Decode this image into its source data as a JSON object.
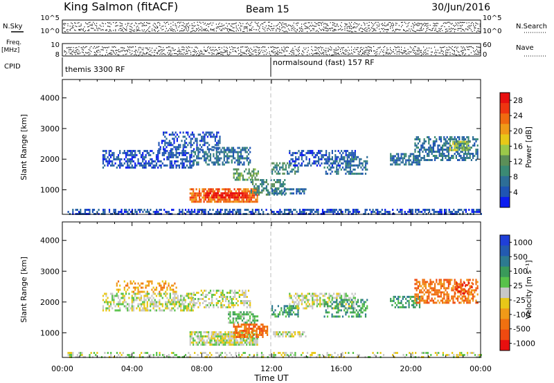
{
  "header": {
    "station": "King Salmon (fitACF)",
    "beam": "Beam 15",
    "date": "30/Jun/2016"
  },
  "param_panels": {
    "nsky_label": "N.Sky",
    "nsky_ticks": [
      "10^5",
      "10^0"
    ],
    "nsearch_label": "N.Search",
    "nsearch_ticks": [
      "10^5",
      "10^0"
    ],
    "freq_label": "Freq.",
    "freq_unit": "[MHz]",
    "freq_ticks": [
      "10",
      "8"
    ],
    "nave_label": "Nave",
    "nave_ticks": [
      "60",
      "0"
    ],
    "cpid_label": "CPID",
    "cpid_segments": [
      "themis 3300 RF",
      "normalsound (fast) 157 RF"
    ]
  },
  "chart_data": [
    {
      "type": "heatmap",
      "parameter": "power",
      "xlabel": "Time UT",
      "ylabel": "Slant Range [km]",
      "xlim_hours": [
        0,
        24
      ],
      "x_ticks": [
        "00:00",
        "04:00",
        "08:00",
        "12:00",
        "16:00",
        "20:00",
        "00:00"
      ],
      "ylim": [
        200,
        4600
      ],
      "y_ticks": [
        1000,
        2000,
        3000,
        4000
      ],
      "colorbar": {
        "label": "Power [dB]",
        "ticks": [
          4,
          8,
          12,
          16,
          20,
          24,
          28
        ],
        "range": [
          0,
          30
        ],
        "colors": [
          "#0b1cf0",
          "#1f54b4",
          "#2d6e97",
          "#3b8a74",
          "#5c8f58",
          "#9bc84a",
          "#e8c818",
          "#f09a18",
          "#f06a10",
          "#ef3510",
          "#e80f0f"
        ]
      },
      "clusters": [
        {
          "t0": 0.3,
          "t1": 24.0,
          "r0": 240,
          "r1": 380,
          "level": 1,
          "density": 0.55
        },
        {
          "t0": 2.3,
          "t1": 7.5,
          "r0": 1700,
          "r1": 2300,
          "level": 1,
          "density": 0.55
        },
        {
          "t0": 5.5,
          "t1": 9.0,
          "r0": 2300,
          "r1": 2900,
          "level": 1,
          "density": 0.45
        },
        {
          "t0": 7.5,
          "t1": 10.8,
          "r0": 1800,
          "r1": 2400,
          "level": 2,
          "density": 0.55
        },
        {
          "t0": 9.8,
          "t1": 11.2,
          "r0": 1300,
          "r1": 1700,
          "level": 4,
          "density": 0.55
        },
        {
          "t0": 7.3,
          "t1": 11.2,
          "r0": 630,
          "r1": 1050,
          "level": 8,
          "density": 0.8
        },
        {
          "t0": 8.2,
          "t1": 10.6,
          "r0": 720,
          "r1": 920,
          "level": 10,
          "density": 0.8
        },
        {
          "t0": 10.8,
          "t1": 12.8,
          "r0": 850,
          "r1": 1350,
          "level": 3,
          "density": 0.45
        },
        {
          "t0": 12.0,
          "t1": 14.0,
          "r0": 900,
          "r1": 1050,
          "level": 2,
          "density": 0.6
        },
        {
          "t0": 12.0,
          "t1": 13.5,
          "r0": 1500,
          "r1": 1900,
          "level": 3,
          "density": 0.55
        },
        {
          "t0": 13.0,
          "t1": 16.8,
          "r0": 1800,
          "r1": 2300,
          "level": 1,
          "density": 0.5
        },
        {
          "t0": 15.0,
          "t1": 17.5,
          "r0": 1500,
          "r1": 2100,
          "level": 2,
          "density": 0.45
        },
        {
          "t0": 18.8,
          "t1": 20.5,
          "r0": 1850,
          "r1": 2200,
          "level": 2,
          "density": 0.6
        },
        {
          "t0": 20.2,
          "t1": 23.8,
          "r0": 2000,
          "r1": 2750,
          "level": 2,
          "density": 0.55
        },
        {
          "t0": 22.2,
          "t1": 23.4,
          "r0": 2300,
          "r1": 2600,
          "level": 5,
          "density": 0.6
        }
      ]
    },
    {
      "type": "heatmap",
      "parameter": "velocity",
      "xlabel": "Time UT",
      "ylabel": "Slant Range [km]",
      "xlim_hours": [
        0,
        24
      ],
      "x_ticks": [
        "00:00",
        "04:00",
        "08:00",
        "12:00",
        "16:00",
        "20:00",
        "00:00"
      ],
      "ylim": [
        200,
        4600
      ],
      "y_ticks": [
        1000,
        2000,
        3000,
        4000
      ],
      "colorbar": {
        "label": "Velocity [m s⁻¹]",
        "ticks": [
          "1000",
          "500",
          "100",
          "25",
          "-25",
          "-100",
          "-500",
          "-1000"
        ],
        "colors": [
          "#1f3fd8",
          "#235ab0",
          "#2d7a90",
          "#3a9a5a",
          "#58c24a",
          "#c8c8c8",
          "#e8c818",
          "#f09a18",
          "#f07010",
          "#ef4a10",
          "#e80f0f"
        ]
      },
      "clusters": [
        {
          "t0": 0.3,
          "t1": 24.0,
          "r0": 240,
          "r1": 380,
          "level": 5,
          "density": 0.35
        },
        {
          "t0": 2.3,
          "t1": 7.5,
          "r0": 1700,
          "r1": 2300,
          "level": 5,
          "density": 0.55
        },
        {
          "t0": 3.0,
          "t1": 6.5,
          "r0": 2300,
          "r1": 2700,
          "level": 7,
          "density": 0.35
        },
        {
          "t0": 7.5,
          "t1": 10.8,
          "r0": 1800,
          "r1": 2400,
          "level": 5,
          "density": 0.5
        },
        {
          "t0": 7.3,
          "t1": 11.2,
          "r0": 630,
          "r1": 1050,
          "level": 5,
          "density": 0.8
        },
        {
          "t0": 9.5,
          "t1": 11.2,
          "r0": 1300,
          "r1": 1700,
          "level": 4,
          "density": 0.5
        },
        {
          "t0": 9.8,
          "t1": 11.8,
          "r0": 830,
          "r1": 1300,
          "level": 8,
          "density": 0.7
        },
        {
          "t0": 12.0,
          "t1": 14.0,
          "r0": 900,
          "r1": 1050,
          "level": 5,
          "density": 0.6
        },
        {
          "t0": 12.0,
          "t1": 13.5,
          "r0": 1500,
          "r1": 1900,
          "level": 3,
          "density": 0.55
        },
        {
          "t0": 13.0,
          "t1": 16.8,
          "r0": 1800,
          "r1": 2300,
          "level": 5,
          "density": 0.5
        },
        {
          "t0": 15.0,
          "t1": 17.5,
          "r0": 1500,
          "r1": 2100,
          "level": 3,
          "density": 0.45
        },
        {
          "t0": 18.8,
          "t1": 20.5,
          "r0": 1850,
          "r1": 2200,
          "level": 3,
          "density": 0.55
        },
        {
          "t0": 20.2,
          "t1": 23.8,
          "r0": 2000,
          "r1": 2750,
          "level": 8,
          "density": 0.55
        },
        {
          "t0": 22.5,
          "t1": 23.5,
          "r0": 2300,
          "r1": 2650,
          "level": 9,
          "density": 0.45
        }
      ]
    }
  ]
}
